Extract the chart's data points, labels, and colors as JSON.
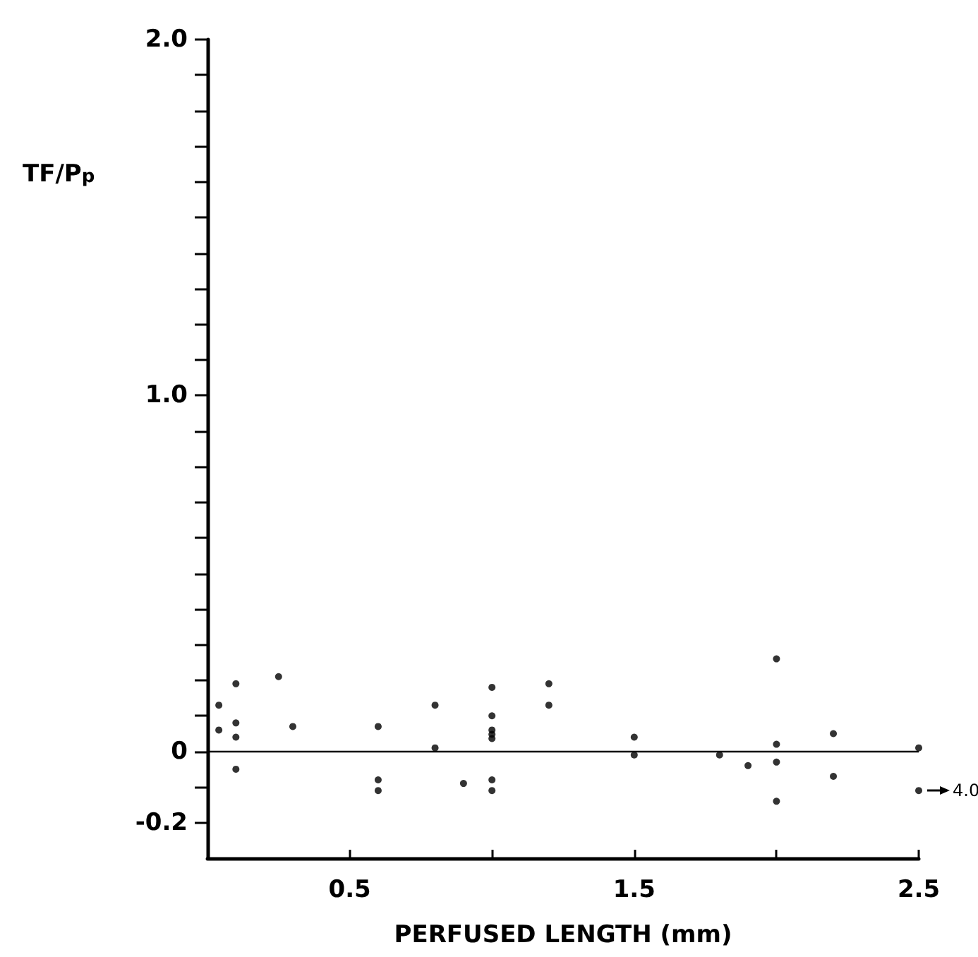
{
  "chart_data": {
    "type": "scatter",
    "xlabel": "PERFUSED LENGTH (mm)",
    "ylabel": "TF/P$_{p}$",
    "marker": "circle",
    "grid": false,
    "legend": false,
    "xlim": [
      0,
      2.5
    ],
    "ylim": [
      -0.3,
      2.0
    ],
    "xticks": [
      {
        "value": 0.5,
        "label": "0.5"
      },
      {
        "value": 1.0,
        "label": null
      },
      {
        "value": 1.5,
        "label": "1.5"
      },
      {
        "value": 2.0,
        "label": null
      },
      {
        "value": 2.5,
        "label": "2.5"
      }
    ],
    "yticks": [
      {
        "value": -0.2,
        "label": "-0.2"
      },
      {
        "value": -0.1,
        "label": null
      },
      {
        "value": 0,
        "label": "0"
      },
      {
        "value": 0.1,
        "label": null
      },
      {
        "value": 0.2,
        "label": null
      },
      {
        "value": 0.3,
        "label": null
      },
      {
        "value": 0.4,
        "label": null
      },
      {
        "value": 0.5,
        "label": null
      },
      {
        "value": 0.6,
        "label": null
      },
      {
        "value": 0.7,
        "label": null
      },
      {
        "value": 0.8,
        "label": null
      },
      {
        "value": 0.9,
        "label": null
      },
      {
        "value": 1.0,
        "label": "1.0"
      },
      {
        "value": 1.1,
        "label": null
      },
      {
        "value": 1.2,
        "label": null
      },
      {
        "value": 1.3,
        "label": null
      },
      {
        "value": 1.4,
        "label": null
      },
      {
        "value": 1.5,
        "label": null
      },
      {
        "value": 1.6,
        "label": null
      },
      {
        "value": 1.7,
        "label": null
      },
      {
        "value": 1.8,
        "label": null
      },
      {
        "value": 1.9,
        "label": null
      },
      {
        "value": 2.0,
        "label": "2.0"
      }
    ],
    "ref_lines": [
      {
        "axis": "y",
        "value": 0,
        "label": null,
        "color": "#000000",
        "line_style": "solid"
      }
    ],
    "annotations": [
      {
        "text": "4.0",
        "x": 2.5,
        "y": -0.11
      }
    ],
    "series": [
      {
        "color": "#000000",
        "x": [
          0.04,
          0.04,
          0.1,
          0.1,
          0.1,
          0.1,
          0.25,
          0.3,
          0.6,
          0.6,
          0.6,
          0.8,
          0.8,
          0.9,
          1.0,
          1.0,
          1.0,
          1.0,
          1.0,
          1.0,
          1.0,
          1.2,
          1.2,
          1.5,
          1.5,
          1.8,
          1.9,
          2.0,
          2.0,
          2.0,
          2.0,
          2.2,
          2.2,
          2.5,
          2.5
        ],
        "values": [
          0.13,
          0.06,
          0.19,
          0.08,
          0.04,
          -0.05,
          0.21,
          0.07,
          0.07,
          -0.08,
          -0.11,
          0.13,
          0.01,
          -0.09,
          0.18,
          0.1,
          0.06,
          0.048,
          0.036,
          -0.08,
          -0.11,
          0.19,
          0.13,
          0.04,
          -0.01,
          -0.01,
          -0.04,
          0.26,
          0.02,
          -0.03,
          -0.14,
          0.05,
          -0.07,
          0.01,
          -0.11
        ]
      }
    ]
  }
}
